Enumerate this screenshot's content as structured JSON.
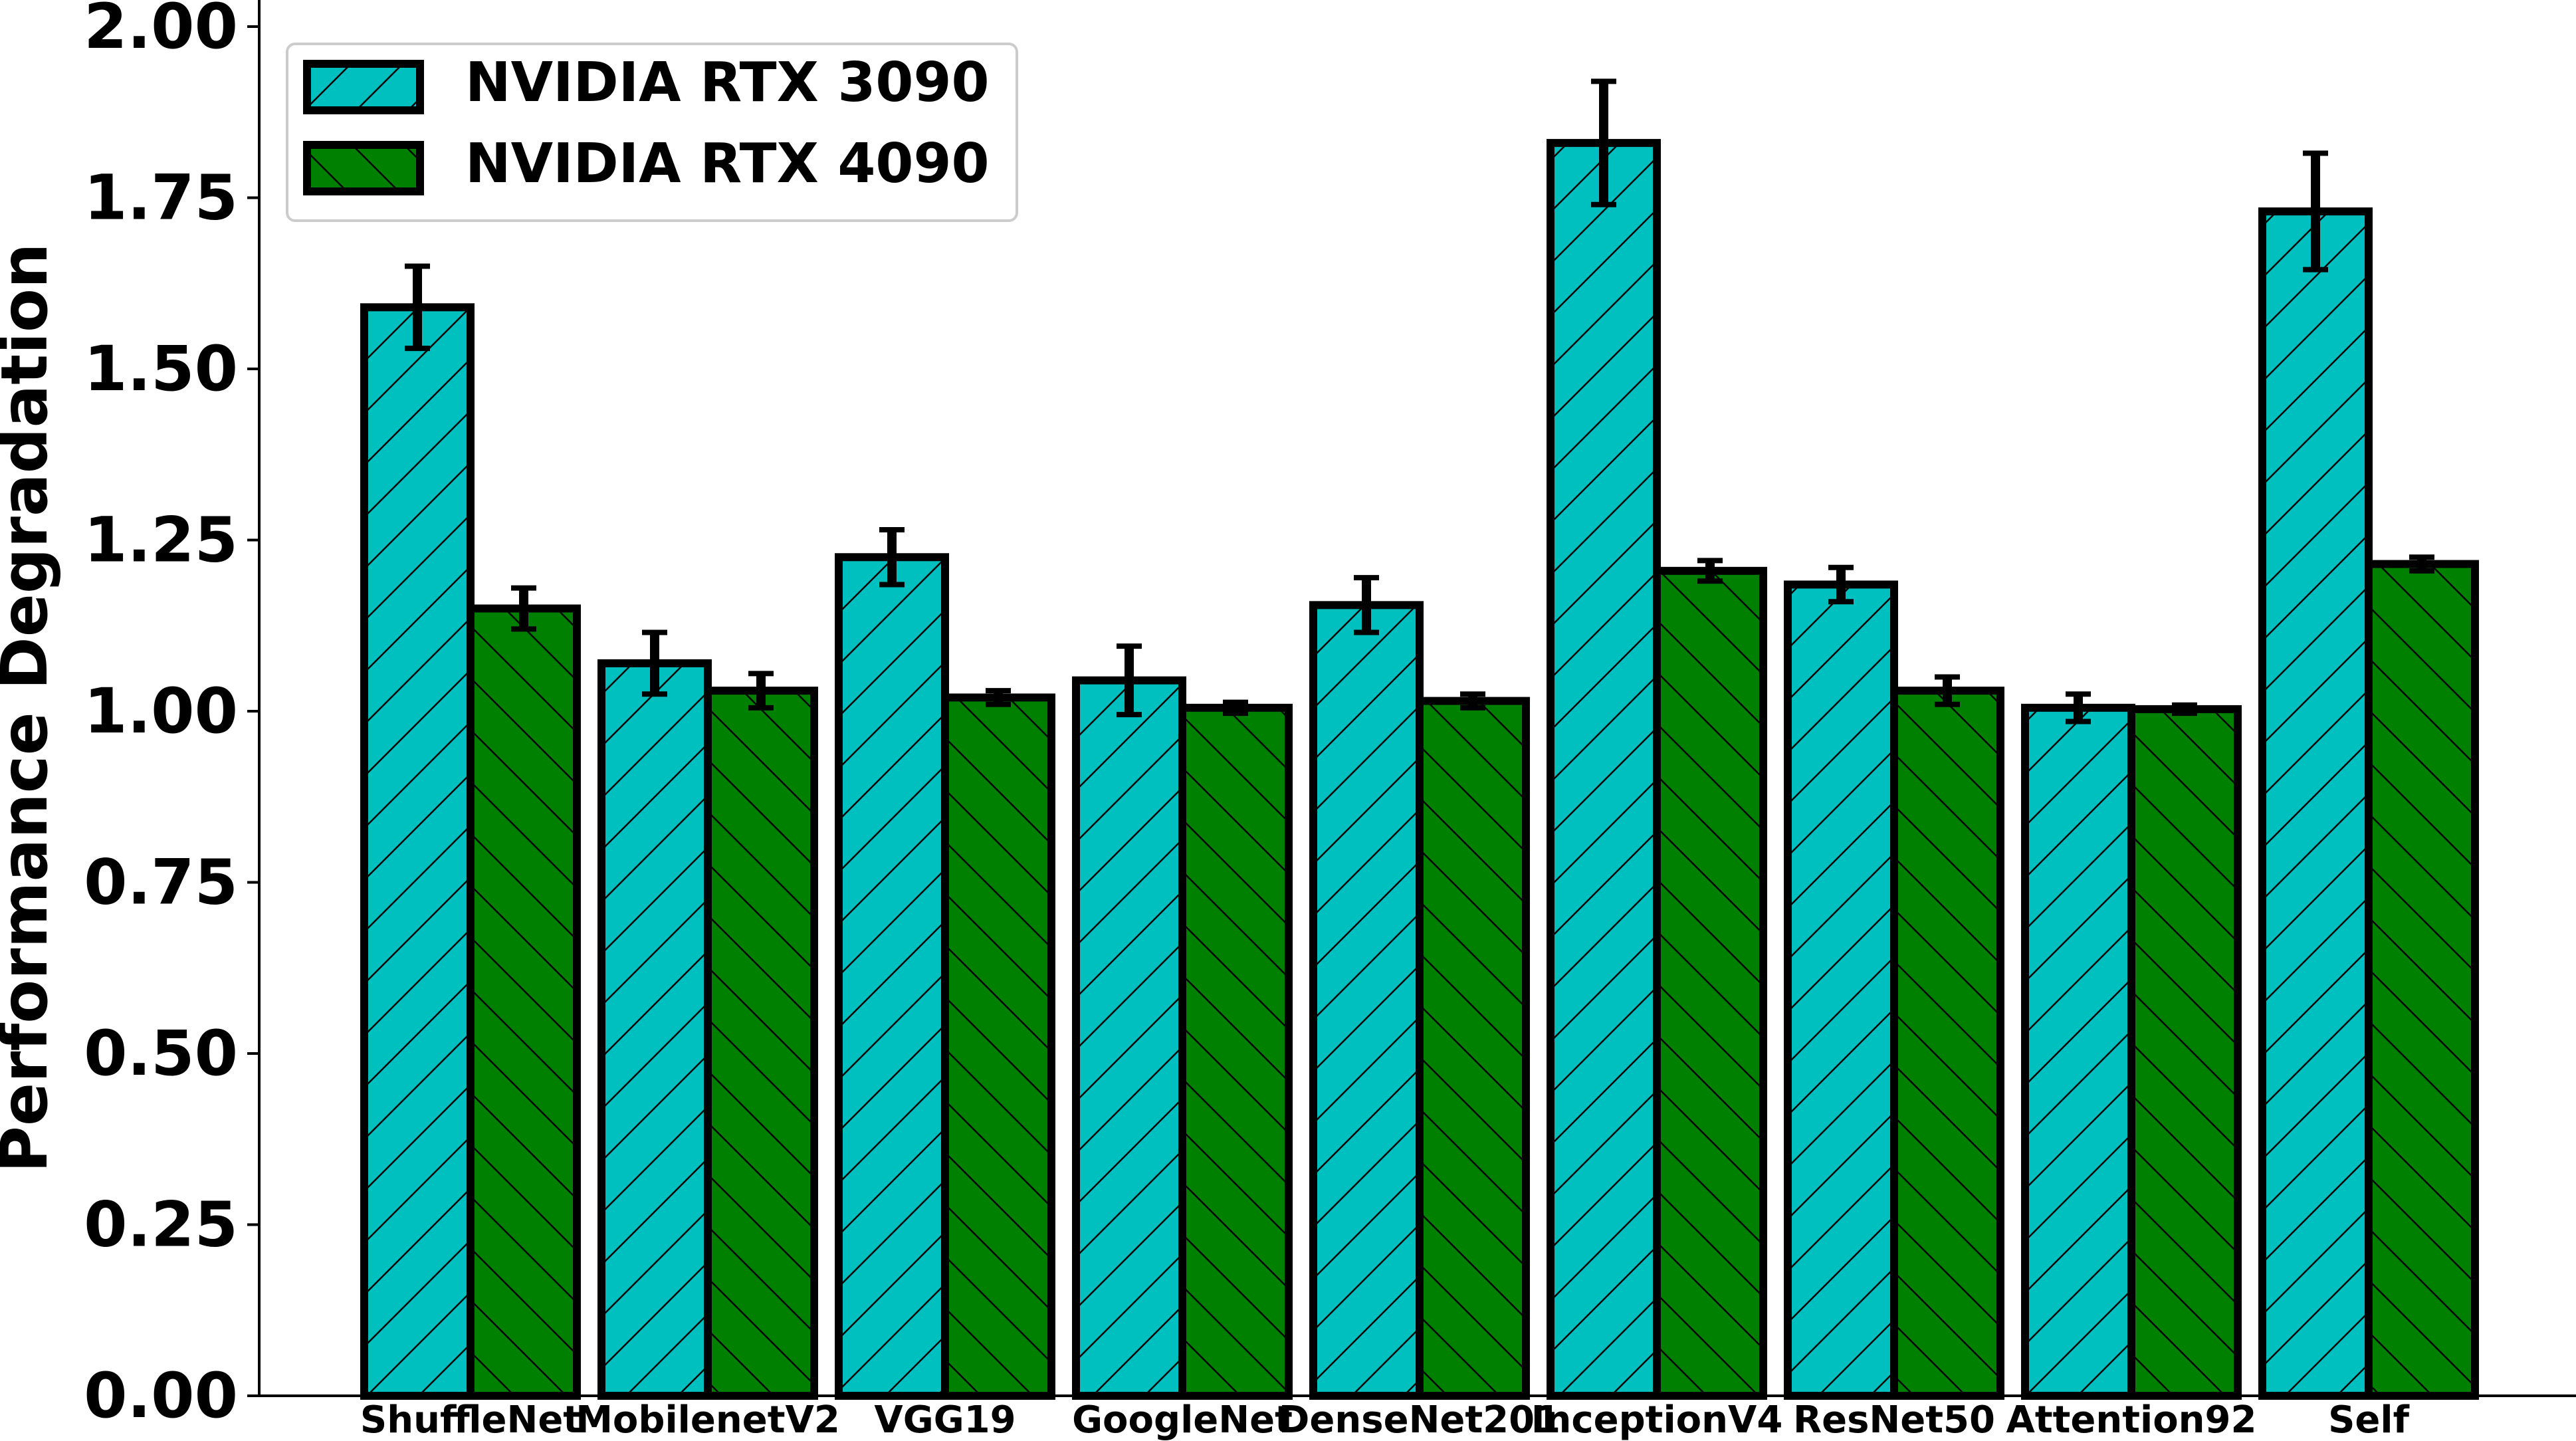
{
  "chart_data": {
    "type": "bar",
    "title": "",
    "xlabel": "",
    "ylabel": "Performance Degradation",
    "ylim": [
      0,
      2.0
    ],
    "yticks": [
      "0.00",
      "0.25",
      "0.50",
      "0.75",
      "1.00",
      "1.25",
      "1.50",
      "1.75",
      "2.00"
    ],
    "grid": false,
    "legend_position": "top-left",
    "categories": [
      "ShuffleNet",
      "MobilenetV2",
      "VGG19",
      "GoogleNet",
      "DenseNet201",
      "InceptionV4",
      "ResNet50",
      "Attention92",
      "Self"
    ],
    "series": [
      {
        "name": "NVIDIA RTX 3090",
        "color": "#00BFBF",
        "hatch": "/",
        "values": [
          1.59,
          1.07,
          1.225,
          1.045,
          1.155,
          1.83,
          1.185,
          1.005,
          1.73
        ],
        "errors": [
          0.06,
          0.045,
          0.04,
          0.05,
          0.04,
          0.09,
          0.025,
          0.02,
          0.085
        ]
      },
      {
        "name": "NVIDIA RTX 4090",
        "color": "#008000",
        "hatch": "\\",
        "values": [
          1.15,
          1.03,
          1.02,
          1.005,
          1.015,
          1.205,
          1.03,
          1.003,
          1.215
        ],
        "errors": [
          0.03,
          0.025,
          0.01,
          0.008,
          0.01,
          0.015,
          0.02,
          0.006,
          0.01
        ]
      }
    ]
  }
}
